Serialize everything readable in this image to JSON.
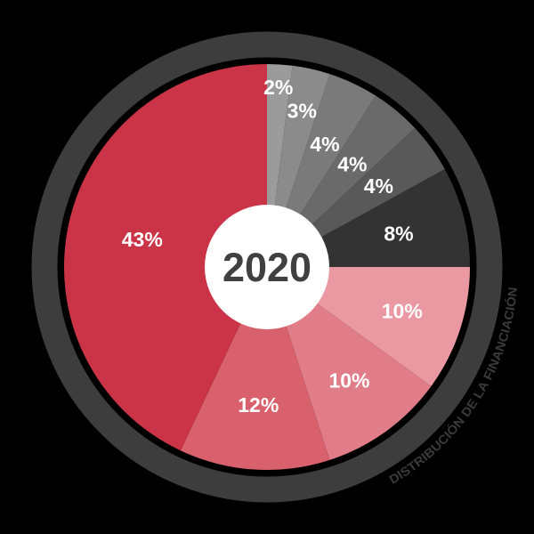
{
  "chart_data": {
    "type": "pie",
    "donut": true,
    "center_label": "2020",
    "caption": "DISTRIBUCIÓN DE LA FINANCIACIÓN",
    "labels": [
      "2%",
      "3%",
      "4%",
      "4%",
      "4%",
      "8%",
      "10%",
      "10%",
      "12%",
      "43%"
    ],
    "values": [
      2,
      3,
      4,
      4,
      4,
      8,
      10,
      10,
      12,
      43
    ],
    "colors": [
      "#9b9b9b",
      "#8b8b8b",
      "#7a7a7a",
      "#6a6a6a",
      "#595959",
      "#333333",
      "#ea99a3",
      "#e07d89",
      "#d9606d",
      "#cb3347"
    ],
    "start_angle_deg": 0,
    "direction": "clockwise",
    "legend": "none",
    "background_color": "#000000",
    "ring_color": "#3d3d3d",
    "hole_color": "#ffffff",
    "slice_label_color": "#ffffff",
    "center_label_color": "#404040",
    "caption_color": "#3a3a3a"
  }
}
